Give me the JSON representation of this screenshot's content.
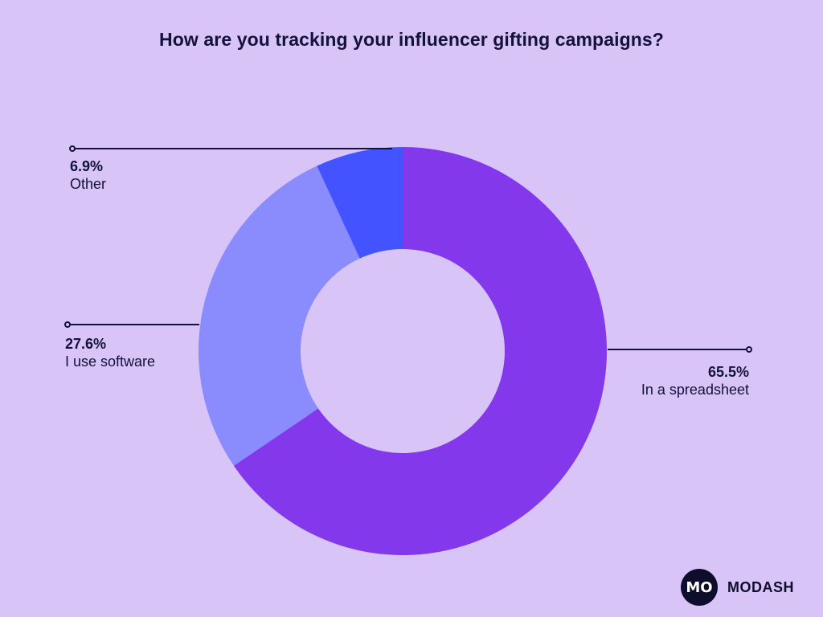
{
  "title": "How are you tracking your influencer gifting campaigns?",
  "chart_data": {
    "type": "pie",
    "variant": "donut",
    "title": "How are you tracking your influencer gifting campaigns?",
    "slices": [
      {
        "label": "In a spreadsheet",
        "value": 65.5,
        "display": "65.5%",
        "color": "#8338EC"
      },
      {
        "label": "I use software",
        "value": 27.6,
        "display": "27.6%",
        "color": "#8A8CFE"
      },
      {
        "label": "Other",
        "value": 6.9,
        "display": "6.9%",
        "color": "#4353FF"
      }
    ],
    "unit": "%"
  },
  "brand": {
    "logo_text": "MO",
    "name": "MODASH"
  },
  "colors": {
    "background": "#D8C4F7",
    "text": "#12123A",
    "hole": "#D8C4F7"
  }
}
